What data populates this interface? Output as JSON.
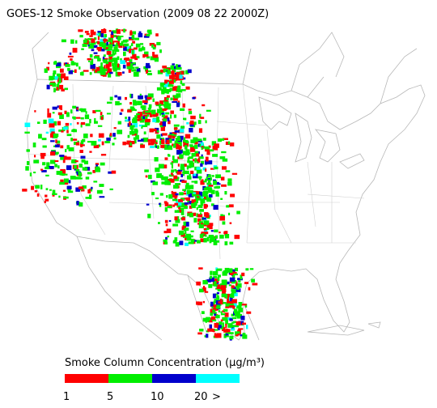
{
  "title": "GOES-12 Smoke Observation (2009 08 22  2000Z)",
  "legend": {
    "title": "Smoke Column Concentration (μg/m³)",
    "bins": [
      {
        "color": "#ff0000"
      },
      {
        "color": "#00ee00"
      },
      {
        "color": "#0000cc"
      },
      {
        "color": "#00ffff"
      }
    ],
    "labels": [
      "1",
      "5",
      "10",
      "20",
      ">"
    ]
  }
}
